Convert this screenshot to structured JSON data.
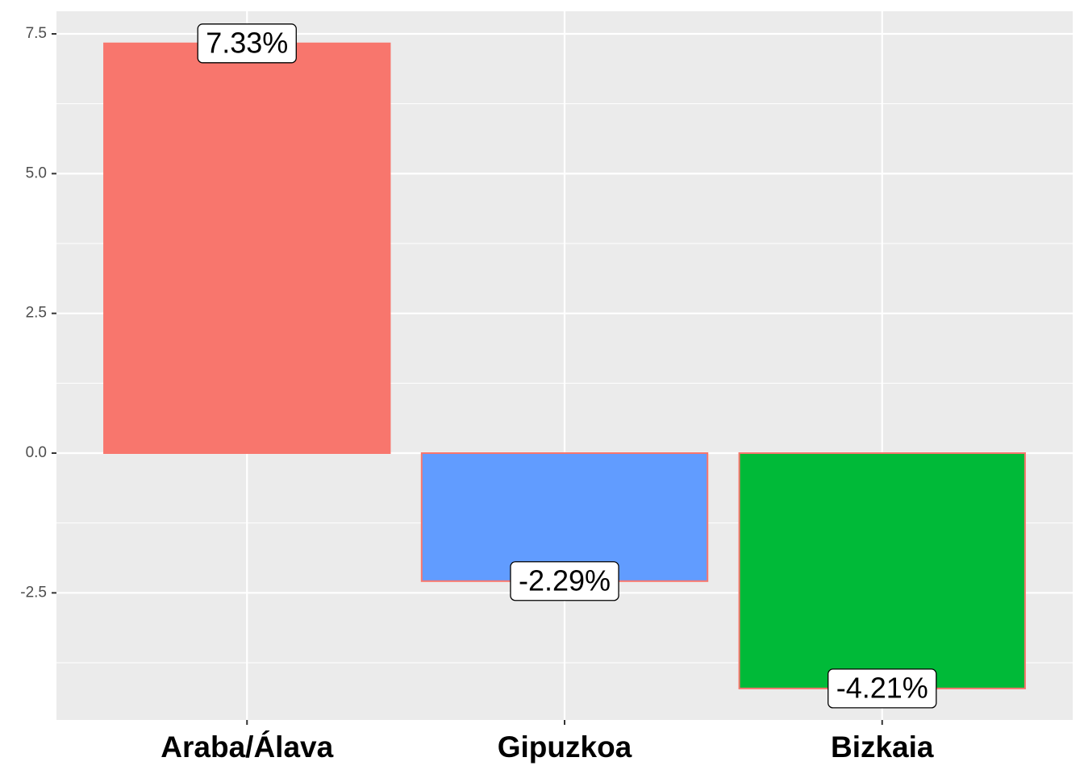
{
  "chart_data": {
    "type": "bar",
    "categories": [
      "Araba/Álava",
      "Gipuzkoa",
      "Bizkaia"
    ],
    "values": [
      7.33,
      -2.29,
      -4.21
    ],
    "value_labels": [
      "7.33%",
      "-2.29%",
      "-4.21%"
    ],
    "colors": [
      "#F8766D",
      "#619CFF",
      "#00BA38"
    ],
    "edge_color": "#F8766D",
    "ylim": [
      -4.774,
      7.904
    ],
    "yticks": [
      -2.5,
      {
        "value": 0,
        "label": "0.0"
      },
      2.5,
      {
        "value": 5,
        "label": "5.0"
      },
      7.5
    ],
    "grid": true
  }
}
